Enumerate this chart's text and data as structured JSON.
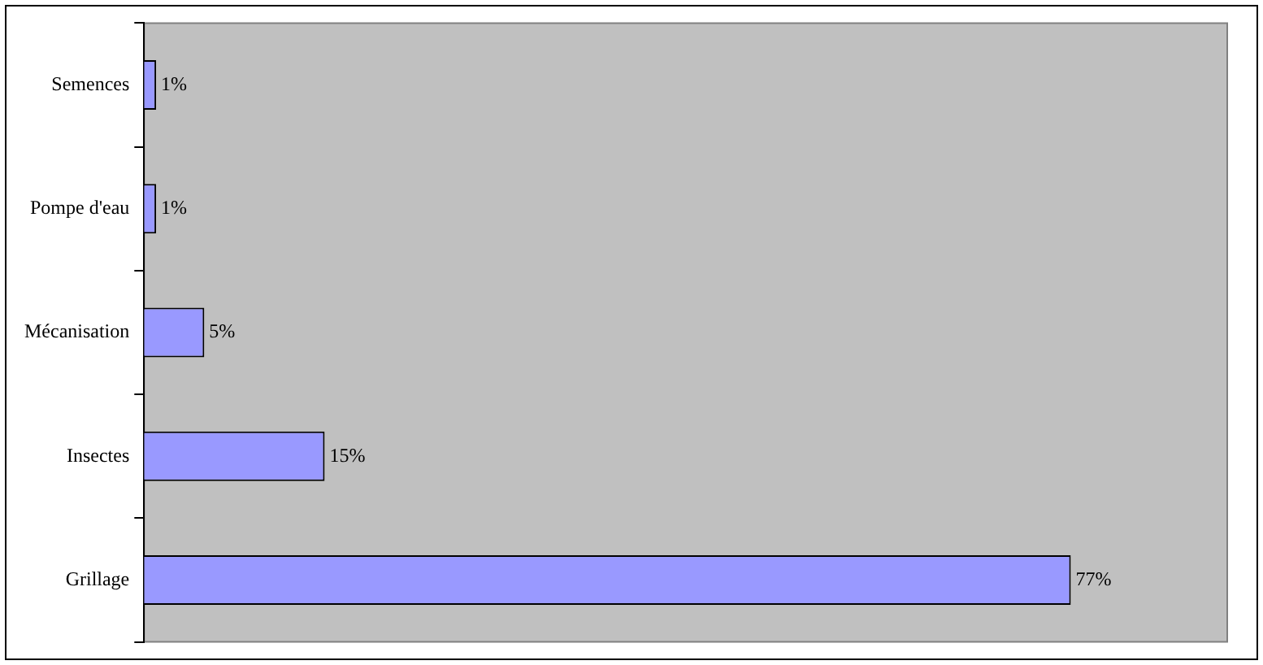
{
  "chart_data": {
    "type": "bar",
    "orientation": "horizontal",
    "categories": [
      "Semences",
      "Pompe d'eau",
      "Mécanisation",
      "Insectes",
      "Grillage"
    ],
    "values": [
      1,
      1,
      5,
      15,
      77
    ],
    "color": "#9999ff",
    "value_labels": [
      "1%",
      "1%",
      "5%",
      "15%",
      "77%"
    ],
    "legend": false
  }
}
